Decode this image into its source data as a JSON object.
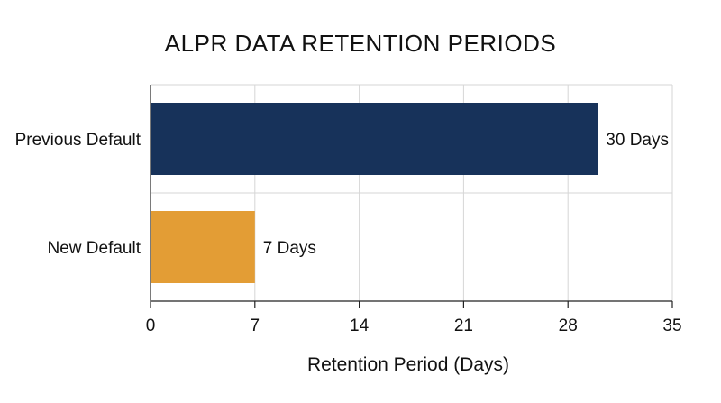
{
  "chart_data": {
    "type": "bar",
    "orientation": "horizontal",
    "title": "ALPR DATA RETENTION PERIODS",
    "xlabel": "Retention Period (Days)",
    "ylabel": "",
    "categories": [
      "Previous Default",
      "New Default"
    ],
    "values": [
      30,
      7
    ],
    "data_labels": [
      "30 Days",
      "7 Days"
    ],
    "colors": [
      "#17325a",
      "#e39d35"
    ],
    "xlim": [
      0,
      35
    ],
    "x_ticks": [
      0,
      7,
      14,
      21,
      28,
      35
    ],
    "x_tick_labels": [
      "0",
      "7",
      "14",
      "21",
      "28",
      "35"
    ],
    "grid": true,
    "legend": "none"
  }
}
